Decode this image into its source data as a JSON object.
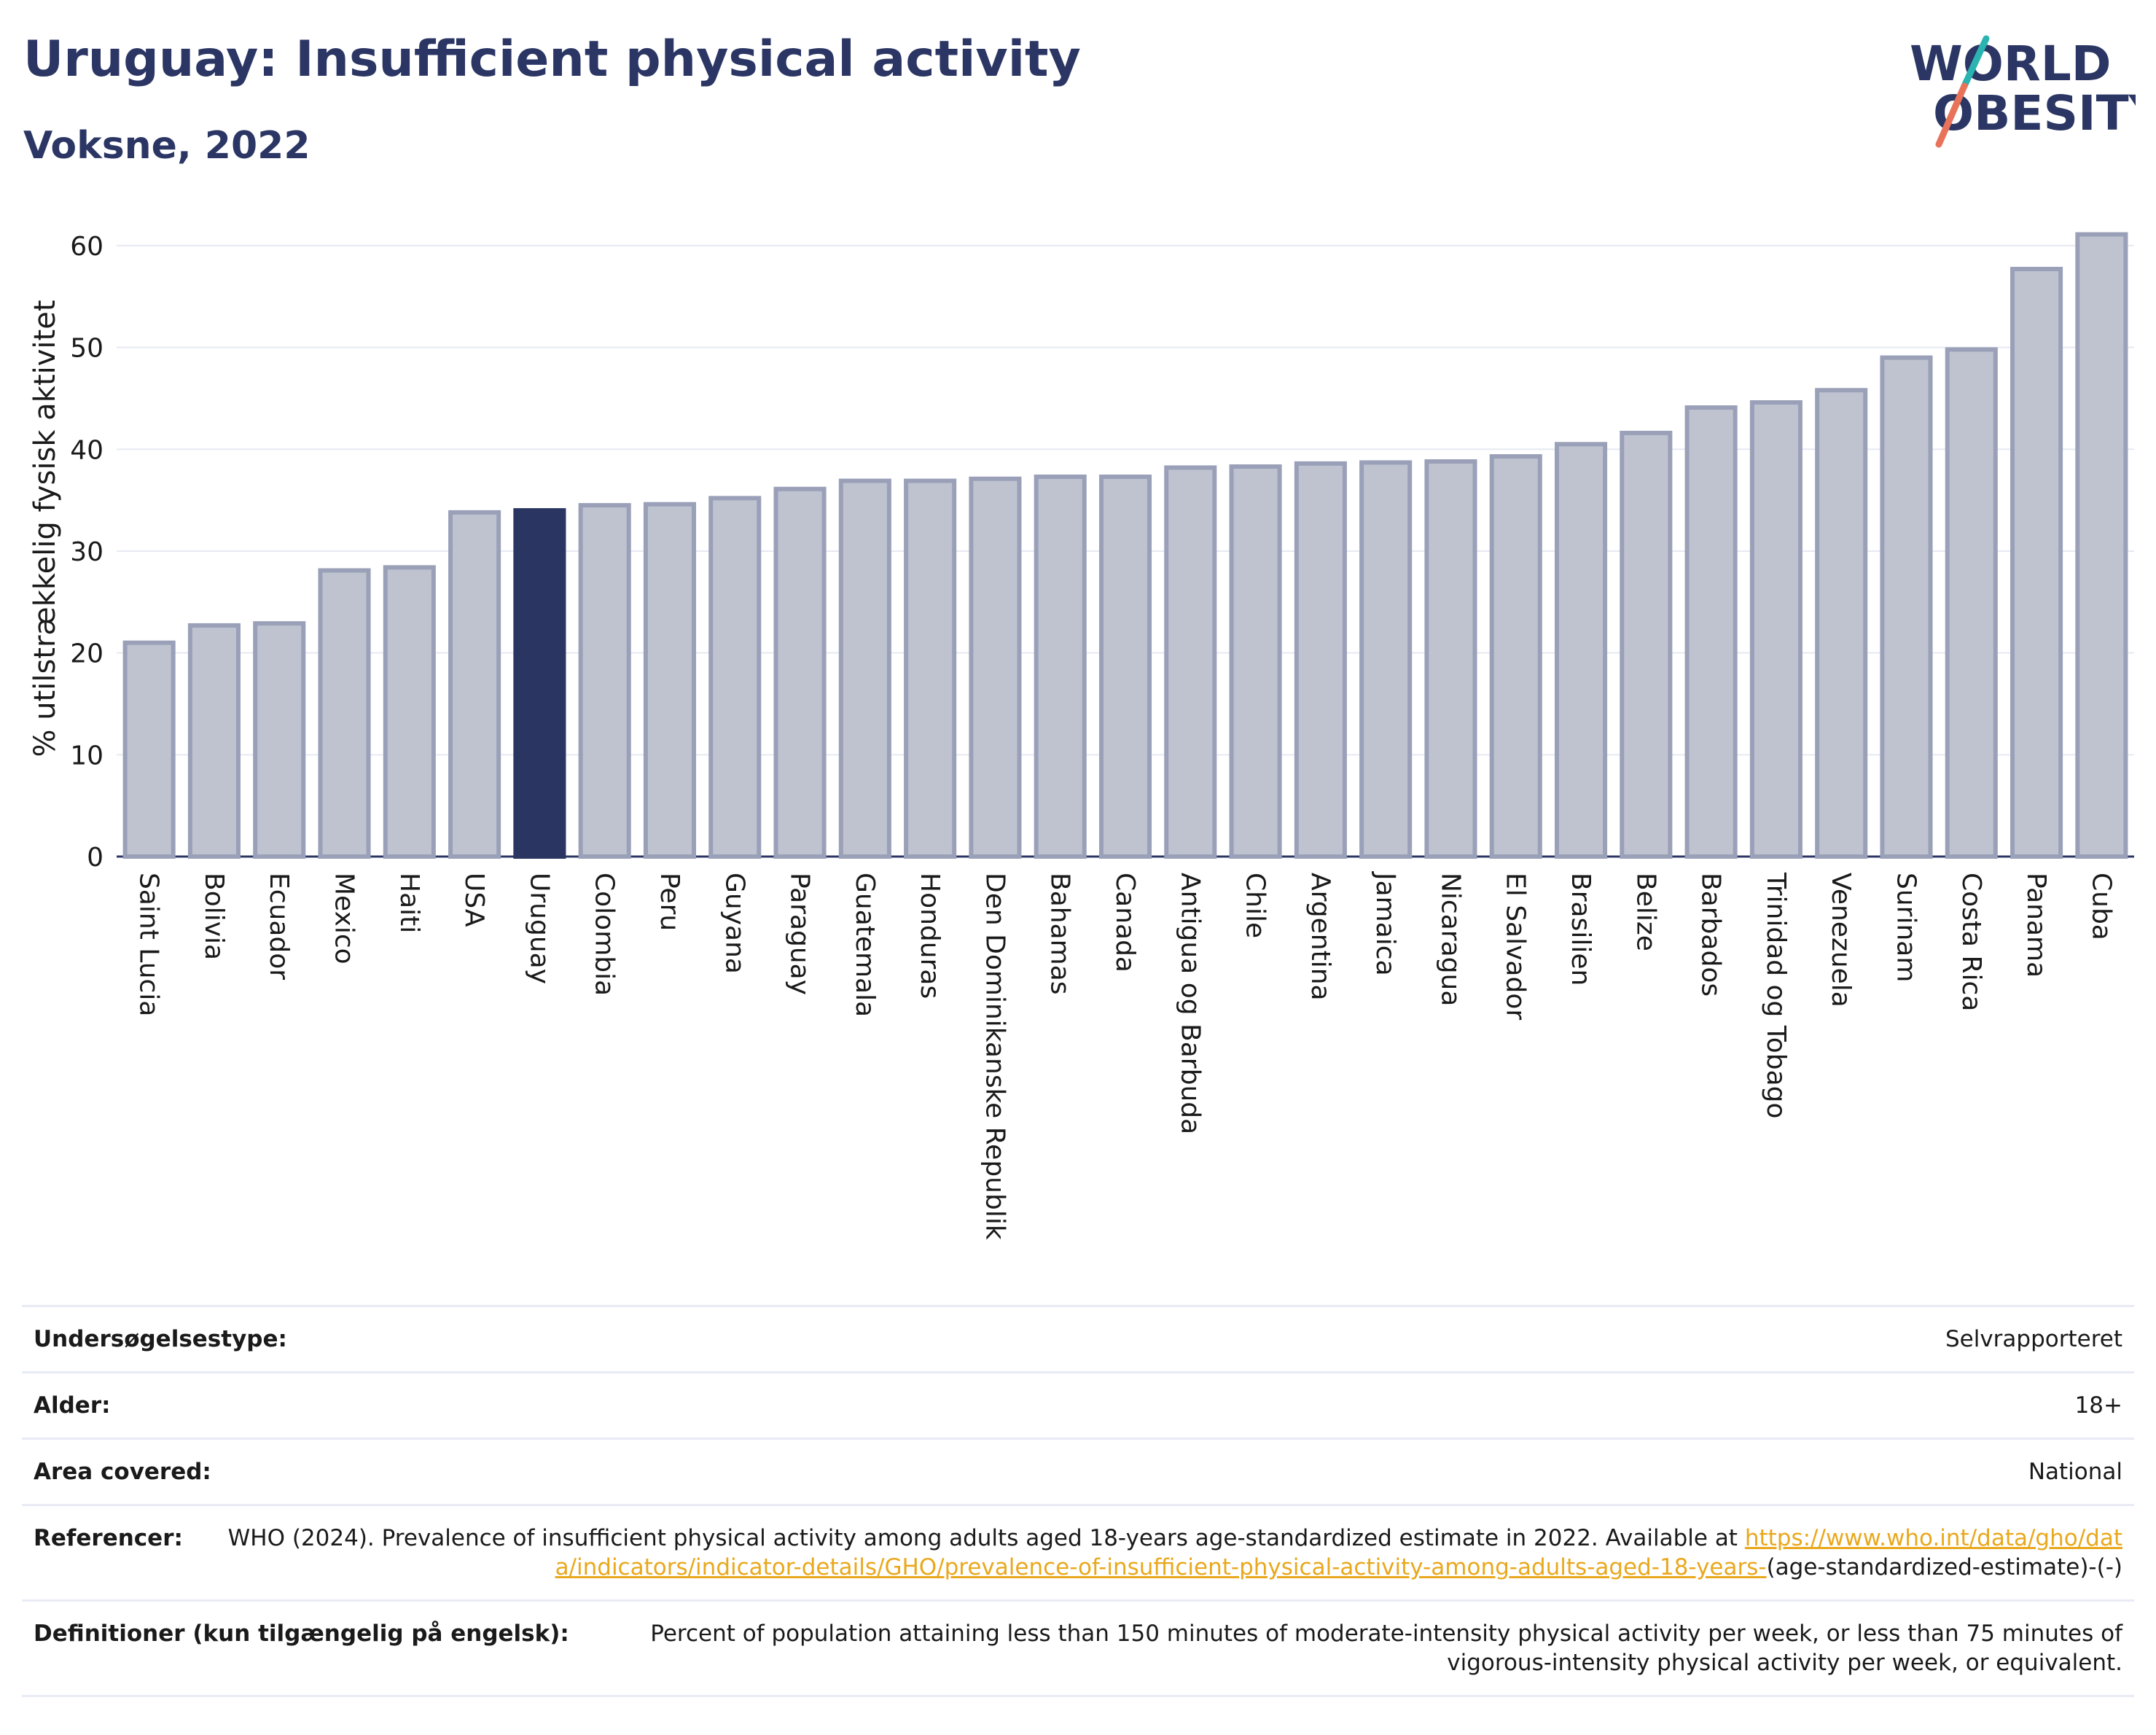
{
  "header": {
    "title": "Uruguay: Insufficient physical activity",
    "subtitle": "Voksne, 2022"
  },
  "logo": {
    "line1": "WORLD",
    "line2": "OBESITY"
  },
  "colors": {
    "bar": "#bfc3d0",
    "bar_edge": "#9aa0b8",
    "highlight": "#2b3561",
    "title": "#2b3664",
    "link": "#e9a81d"
  },
  "chart_data": {
    "type": "bar",
    "ylabel": "% utilstrækkelig fysisk aktivitet",
    "ylim": [
      0,
      63
    ],
    "yticks": [
      0,
      10,
      20,
      30,
      40,
      50,
      60
    ],
    "grid": true,
    "highlight": "Uruguay",
    "categories": [
      "Saint Lucia",
      "Bolivia",
      "Ecuador",
      "Mexico",
      "Haiti",
      "USA",
      "Uruguay",
      "Colombia",
      "Peru",
      "Guyana",
      "Paraguay",
      "Guatemala",
      "Honduras",
      "Den Dominikanske Republik",
      "Bahamas",
      "Canada",
      "Antigua og Barbuda",
      "Chile",
      "Argentina",
      "Jamaica",
      "Nicaragua",
      "El Salvador",
      "Brasilien",
      "Belize",
      "Barbados",
      "Trinidad og Tobago",
      "Venezuela",
      "Surinam",
      "Costa Rica",
      "Panama",
      "Cuba"
    ],
    "values": [
      21.0,
      22.7,
      22.9,
      28.1,
      28.4,
      33.8,
      34.0,
      34.5,
      34.6,
      35.2,
      36.1,
      36.9,
      36.9,
      37.1,
      37.3,
      37.3,
      38.2,
      38.3,
      38.6,
      38.7,
      38.8,
      39.3,
      40.5,
      41.6,
      44.1,
      44.6,
      45.8,
      49.0,
      49.8,
      57.7,
      61.1
    ]
  },
  "info": {
    "survey_label": "Undersøgelsestype:",
    "survey_value": "Selvrapporteret",
    "age_label": "Alder:",
    "age_value": "18+",
    "area_label": "Area covered:",
    "area_value": "National",
    "ref_label": "Referencer:",
    "ref_text": "WHO (2024). Prevalence of insufficient physical activity among adults aged 18-years age-standardized estimate in 2022. Available at",
    "ref_link": "https://www.who.int/data/gho/data/indicators/indicator-details/GHO/prevalence-of-insufficient-physical-activity-among-adults-aged-18-years-",
    "ref_suffix": "(age-standardized-estimate)-(-)",
    "def_label": "Definitioner (kun tilgængelig på engelsk):",
    "def_value": "Percent of population attaining less than 150 minutes of moderate-intensity physical activity per week, or less than 75 minutes of vigorous-intensity physical activity per week, or equivalent."
  }
}
